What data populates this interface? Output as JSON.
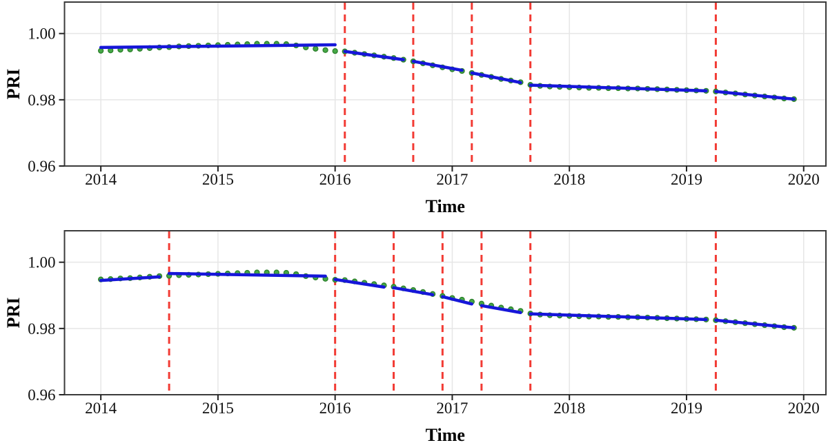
{
  "figure": {
    "background": "#ffffff",
    "description": "Two stacked piecewise-regression plots of PRI over time with breakpoints marked by red dashed vertical lines"
  },
  "chart_data": [
    {
      "type": "line",
      "panel": "top",
      "xlabel": "Time",
      "ylabel": "PRI",
      "grid": true,
      "legend": "none",
      "xlim": [
        2013.69,
        2020.19
      ],
      "ylim": [
        0.96,
        1.0095
      ],
      "x_ticks": [
        2014,
        2015,
        2016,
        2017,
        2018,
        2019,
        2020
      ],
      "x_tick_labels": [
        "2014",
        "2015",
        "2016",
        "2017",
        "2018",
        "2019",
        "2020"
      ],
      "y_ticks": [
        1.0,
        0.98,
        0.96
      ],
      "y_tick_labels": [
        "1.00",
        "0.98",
        "0.96"
      ],
      "breakpoints": [
        2016.083,
        2016.667,
        2017.167,
        2017.667,
        2019.25
      ],
      "colors": {
        "observed": "#46a846",
        "observed_edge": "#2b7f2b",
        "fitted": "#1616d9",
        "breakline": "#f23b34",
        "grid": "#e6e6e6",
        "frame": "#3a3a3a",
        "text": "#111111"
      },
      "series": [
        {
          "name": "observed PRI (monthly)",
          "type": "scatter",
          "x": [
            2014.0,
            2014.083,
            2014.167,
            2014.25,
            2014.333,
            2014.417,
            2014.5,
            2014.583,
            2014.667,
            2014.75,
            2014.833,
            2014.917,
            2015.0,
            2015.083,
            2015.167,
            2015.25,
            2015.333,
            2015.417,
            2015.5,
            2015.583,
            2015.667,
            2015.75,
            2015.833,
            2015.917,
            2016.0,
            2016.083,
            2016.167,
            2016.25,
            2016.333,
            2016.417,
            2016.5,
            2016.583,
            2016.667,
            2016.75,
            2016.833,
            2016.917,
            2017.0,
            2017.083,
            2017.167,
            2017.25,
            2017.333,
            2017.417,
            2017.5,
            2017.583,
            2017.667,
            2017.75,
            2017.833,
            2017.917,
            2018.0,
            2018.083,
            2018.167,
            2018.25,
            2018.333,
            2018.417,
            2018.5,
            2018.583,
            2018.667,
            2018.75,
            2018.833,
            2018.917,
            2019.0,
            2019.083,
            2019.167,
            2019.25,
            2019.333,
            2019.417,
            2019.5,
            2019.583,
            2019.667,
            2019.75,
            2019.833,
            2019.917
          ],
          "y": [
            0.9948,
            0.9949,
            0.9951,
            0.9952,
            0.9954,
            0.9956,
            0.9958,
            0.9959,
            0.9961,
            0.9962,
            0.9963,
            0.9964,
            0.9965,
            0.9966,
            0.9967,
            0.9968,
            0.9969,
            0.9969,
            0.9969,
            0.9968,
            0.9964,
            0.9958,
            0.9954,
            0.995,
            0.9947,
            0.9946,
            0.9942,
            0.9938,
            0.9934,
            0.993,
            0.9926,
            0.9921,
            0.9916,
            0.991,
            0.9904,
            0.9898,
            0.9892,
            0.9887,
            0.9881,
            0.9875,
            0.9869,
            0.9863,
            0.9858,
            0.9853,
            0.9845,
            0.9842,
            0.984,
            0.9839,
            0.9838,
            0.9837,
            0.9836,
            0.9836,
            0.9835,
            0.9835,
            0.9834,
            0.9834,
            0.9833,
            0.9832,
            0.9831,
            0.983,
            0.9829,
            0.9828,
            0.9827,
            0.9825,
            0.9822,
            0.9819,
            0.9816,
            0.9813,
            0.981,
            0.9807,
            0.9804,
            0.9802
          ]
        },
        {
          "name": "piecewise fitted trend",
          "type": "segments",
          "segments": [
            {
              "x": [
                2014.0,
                2016.0
              ],
              "y": [
                0.9958,
                0.9966
              ]
            },
            {
              "x": [
                2016.083,
                2016.583
              ],
              "y": [
                0.9946,
                0.9921
              ]
            },
            {
              "x": [
                2016.667,
                2017.083
              ],
              "y": [
                0.9916,
                0.9889
              ]
            },
            {
              "x": [
                2017.167,
                2017.583
              ],
              "y": [
                0.9881,
                0.9852
              ]
            },
            {
              "x": [
                2017.667,
                2019.167
              ],
              "y": [
                0.9844,
                0.9827
              ]
            },
            {
              "x": [
                2019.25,
                2019.917
              ],
              "y": [
                0.9825,
                0.9802
              ]
            }
          ]
        }
      ]
    },
    {
      "type": "line",
      "panel": "bottom",
      "xlabel": "Time",
      "ylabel": "PRI",
      "grid": true,
      "legend": "none",
      "xlim": [
        2013.69,
        2020.19
      ],
      "ylim": [
        0.96,
        1.0095
      ],
      "x_ticks": [
        2014,
        2015,
        2016,
        2017,
        2018,
        2019,
        2020
      ],
      "x_tick_labels": [
        "2014",
        "2015",
        "2016",
        "2017",
        "2018",
        "2019",
        "2020"
      ],
      "y_ticks": [
        1.0,
        0.98,
        0.96
      ],
      "y_tick_labels": [
        "1.00",
        "0.98",
        "0.96"
      ],
      "breakpoints": [
        2014.583,
        2016.0,
        2016.5,
        2016.917,
        2017.25,
        2017.667,
        2019.25
      ],
      "colors": {
        "observed": "#46a846",
        "observed_edge": "#2b7f2b",
        "fitted": "#1616d9",
        "breakline": "#f23b34",
        "grid": "#e6e6e6",
        "frame": "#3a3a3a",
        "text": "#111111"
      },
      "series": [
        {
          "name": "observed PRI (monthly)",
          "type": "scatter",
          "x": [
            2014.0,
            2014.083,
            2014.167,
            2014.25,
            2014.333,
            2014.417,
            2014.5,
            2014.583,
            2014.667,
            2014.75,
            2014.833,
            2014.917,
            2015.0,
            2015.083,
            2015.167,
            2015.25,
            2015.333,
            2015.417,
            2015.5,
            2015.583,
            2015.667,
            2015.75,
            2015.833,
            2015.917,
            2016.0,
            2016.083,
            2016.167,
            2016.25,
            2016.333,
            2016.417,
            2016.5,
            2016.583,
            2016.667,
            2016.75,
            2016.833,
            2016.917,
            2017.0,
            2017.083,
            2017.167,
            2017.25,
            2017.333,
            2017.417,
            2017.5,
            2017.583,
            2017.667,
            2017.75,
            2017.833,
            2017.917,
            2018.0,
            2018.083,
            2018.167,
            2018.25,
            2018.333,
            2018.417,
            2018.5,
            2018.583,
            2018.667,
            2018.75,
            2018.833,
            2018.917,
            2019.0,
            2019.083,
            2019.167,
            2019.25,
            2019.333,
            2019.417,
            2019.5,
            2019.583,
            2019.667,
            2019.75,
            2019.833,
            2019.917
          ],
          "y": [
            0.9948,
            0.9949,
            0.9951,
            0.9952,
            0.9954,
            0.9956,
            0.9958,
            0.9959,
            0.9961,
            0.9962,
            0.9963,
            0.9964,
            0.9965,
            0.9966,
            0.9967,
            0.9968,
            0.9969,
            0.9969,
            0.9969,
            0.9968,
            0.9964,
            0.9958,
            0.9954,
            0.995,
            0.9947,
            0.9946,
            0.9942,
            0.9938,
            0.9934,
            0.993,
            0.9926,
            0.9921,
            0.9916,
            0.991,
            0.9904,
            0.9898,
            0.9892,
            0.9887,
            0.9881,
            0.9875,
            0.9869,
            0.9863,
            0.9858,
            0.9853,
            0.9845,
            0.9842,
            0.984,
            0.9839,
            0.9838,
            0.9837,
            0.9836,
            0.9836,
            0.9835,
            0.9835,
            0.9834,
            0.9834,
            0.9833,
            0.9832,
            0.9831,
            0.983,
            0.9829,
            0.9828,
            0.9827,
            0.9825,
            0.9822,
            0.9819,
            0.9816,
            0.9813,
            0.981,
            0.9807,
            0.9804,
            0.9802
          ]
        },
        {
          "name": "piecewise fitted trend",
          "type": "segments",
          "segments": [
            {
              "x": [
                2014.0,
                2014.5
              ],
              "y": [
                0.9945,
                0.9956
              ]
            },
            {
              "x": [
                2014.583,
                2015.917
              ],
              "y": [
                0.9966,
                0.9958
              ]
            },
            {
              "x": [
                2016.0,
                2016.417
              ],
              "y": [
                0.9948,
                0.9925
              ]
            },
            {
              "x": [
                2016.5,
                2016.833
              ],
              "y": [
                0.9923,
                0.9902
              ]
            },
            {
              "x": [
                2016.917,
                2017.167
              ],
              "y": [
                0.9896,
                0.9874
              ]
            },
            {
              "x": [
                2017.25,
                2017.583
              ],
              "y": [
                0.9869,
                0.9848
              ]
            },
            {
              "x": [
                2017.667,
                2019.167
              ],
              "y": [
                0.9844,
                0.9827
              ]
            },
            {
              "x": [
                2019.25,
                2019.917
              ],
              "y": [
                0.9825,
                0.9802
              ]
            }
          ]
        }
      ]
    }
  ]
}
